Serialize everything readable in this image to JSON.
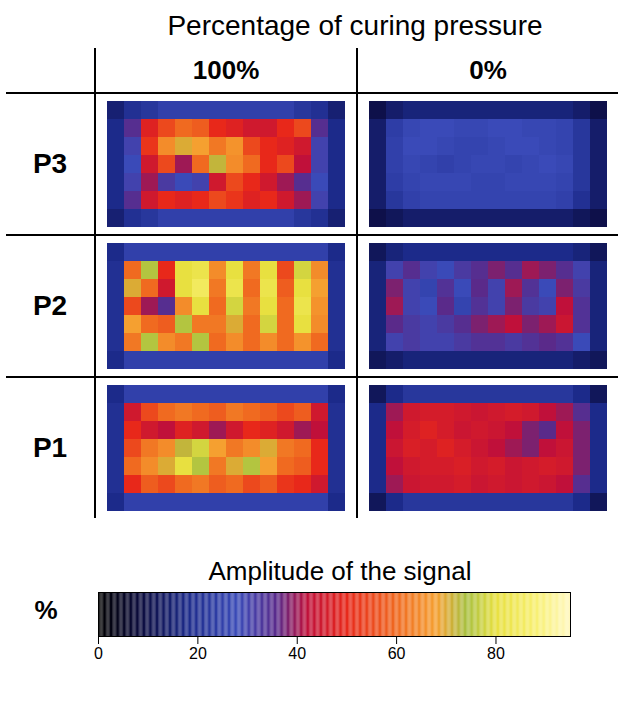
{
  "chart_data": {
    "type": "heatmap",
    "title": "Percentage of curing pressure",
    "columns": [
      "100%",
      "0%"
    ],
    "rows": [
      "P3",
      "P2",
      "P1"
    ],
    "panels": [
      {
        "row": "P3",
        "column": "100%",
        "cells": [
          [
            15,
            20,
            22,
            25,
            25,
            25,
            25,
            25,
            25,
            25,
            25,
            22,
            20,
            15
          ],
          [
            18,
            35,
            48,
            55,
            60,
            58,
            50,
            48,
            45,
            45,
            50,
            55,
            35,
            18
          ],
          [
            18,
            30,
            52,
            65,
            70,
            68,
            62,
            66,
            55,
            50,
            48,
            45,
            30,
            18
          ],
          [
            18,
            28,
            45,
            55,
            40,
            60,
            72,
            65,
            60,
            50,
            55,
            42,
            30,
            18
          ],
          [
            18,
            30,
            40,
            32,
            28,
            30,
            45,
            55,
            50,
            45,
            40,
            35,
            28,
            18
          ],
          [
            18,
            35,
            45,
            50,
            48,
            50,
            55,
            52,
            48,
            50,
            45,
            40,
            30,
            18
          ],
          [
            15,
            20,
            22,
            25,
            25,
            25,
            25,
            25,
            25,
            25,
            25,
            22,
            20,
            15
          ]
        ]
      },
      {
        "row": "P3",
        "column": "0%",
        "cells": [
          [
            10,
            14,
            16,
            16,
            16,
            16,
            16,
            16,
            16,
            16,
            16,
            16,
            14,
            10
          ],
          [
            14,
            24,
            27,
            28,
            28,
            27,
            27,
            28,
            28,
            27,
            27,
            26,
            22,
            14
          ],
          [
            14,
            25,
            28,
            28,
            27,
            26,
            26,
            27,
            28,
            28,
            27,
            26,
            22,
            14
          ],
          [
            14,
            25,
            27,
            26,
            25,
            26,
            27,
            27,
            26,
            27,
            28,
            27,
            22,
            14
          ],
          [
            14,
            24,
            26,
            27,
            27,
            27,
            26,
            26,
            27,
            27,
            27,
            26,
            22,
            14
          ],
          [
            14,
            22,
            25,
            26,
            26,
            26,
            26,
            26,
            26,
            26,
            26,
            25,
            20,
            14
          ],
          [
            10,
            12,
            14,
            14,
            14,
            14,
            14,
            14,
            14,
            14,
            14,
            14,
            12,
            10
          ]
        ]
      },
      {
        "row": "P2",
        "column": "100%",
        "cells": [
          [
            18,
            25,
            25,
            25,
            25,
            25,
            25,
            25,
            25,
            25,
            25,
            25,
            25,
            18
          ],
          [
            20,
            60,
            75,
            50,
            80,
            82,
            65,
            80,
            62,
            80,
            55,
            78,
            65,
            20
          ],
          [
            20,
            70,
            60,
            45,
            80,
            85,
            62,
            82,
            60,
            82,
            58,
            80,
            68,
            20
          ],
          [
            20,
            55,
            40,
            35,
            65,
            80,
            60,
            78,
            62,
            80,
            60,
            82,
            66,
            20
          ],
          [
            20,
            68,
            60,
            58,
            75,
            62,
            62,
            70,
            60,
            78,
            60,
            80,
            65,
            20
          ],
          [
            20,
            62,
            75,
            65,
            62,
            75,
            60,
            65,
            60,
            65,
            60,
            66,
            60,
            20
          ],
          [
            18,
            25,
            25,
            25,
            25,
            25,
            25,
            25,
            25,
            25,
            25,
            25,
            25,
            18
          ]
        ]
      },
      {
        "row": "P2",
        "column": "0%",
        "cells": [
          [
            12,
            16,
            18,
            18,
            18,
            18,
            18,
            18,
            18,
            18,
            18,
            18,
            16,
            12
          ],
          [
            16,
            30,
            35,
            30,
            28,
            32,
            35,
            38,
            35,
            40,
            38,
            35,
            30,
            16
          ],
          [
            16,
            38,
            30,
            26,
            34,
            28,
            36,
            30,
            40,
            34,
            28,
            38,
            32,
            16
          ],
          [
            16,
            40,
            30,
            28,
            36,
            26,
            34,
            30,
            38,
            32,
            30,
            42,
            34,
            16
          ],
          [
            16,
            36,
            32,
            30,
            32,
            35,
            38,
            40,
            42,
            38,
            40,
            44,
            34,
            16
          ],
          [
            16,
            30,
            32,
            30,
            30,
            32,
            34,
            34,
            32,
            34,
            36,
            34,
            28,
            16
          ],
          [
            12,
            14,
            16,
            16,
            16,
            16,
            16,
            16,
            16,
            16,
            16,
            16,
            14,
            12
          ]
        ]
      },
      {
        "row": "P1",
        "column": "100%",
        "cells": [
          [
            18,
            25,
            25,
            25,
            25,
            25,
            25,
            25,
            25,
            25,
            25,
            25,
            25,
            18
          ],
          [
            20,
            45,
            55,
            60,
            62,
            60,
            58,
            62,
            60,
            58,
            55,
            58,
            45,
            20
          ],
          [
            20,
            50,
            45,
            42,
            48,
            45,
            40,
            45,
            50,
            48,
            45,
            40,
            42,
            20
          ],
          [
            20,
            55,
            62,
            65,
            72,
            78,
            68,
            62,
            65,
            70,
            62,
            60,
            50,
            20
          ],
          [
            20,
            60,
            65,
            70,
            80,
            75,
            62,
            70,
            75,
            68,
            60,
            58,
            50,
            20
          ],
          [
            20,
            50,
            58,
            55,
            60,
            62,
            58,
            60,
            55,
            58,
            52,
            50,
            45,
            20
          ],
          [
            18,
            25,
            25,
            25,
            25,
            25,
            25,
            25,
            25,
            25,
            25,
            25,
            25,
            18
          ]
        ]
      },
      {
        "row": "P1",
        "column": "0%",
        "cells": [
          [
            12,
            18,
            22,
            22,
            22,
            22,
            22,
            22,
            22,
            22,
            22,
            22,
            18,
            12
          ],
          [
            18,
            40,
            45,
            46,
            46,
            45,
            44,
            45,
            46,
            45,
            42,
            40,
            35,
            18
          ],
          [
            18,
            42,
            46,
            48,
            46,
            44,
            45,
            44,
            42,
            38,
            36,
            42,
            38,
            18
          ],
          [
            18,
            44,
            47,
            46,
            48,
            46,
            44,
            42,
            40,
            38,
            42,
            44,
            38,
            18
          ],
          [
            18,
            42,
            45,
            46,
            46,
            47,
            45,
            46,
            44,
            45,
            46,
            45,
            38,
            18
          ],
          [
            18,
            40,
            44,
            45,
            45,
            46,
            44,
            45,
            44,
            45,
            44,
            42,
            35,
            18
          ],
          [
            12,
            18,
            22,
            22,
            22,
            22,
            22,
            22,
            22,
            22,
            22,
            22,
            18,
            12
          ]
        ]
      }
    ],
    "colorbar": {
      "title": "Amplitude of the signal",
      "label": "%",
      "range": [
        0,
        95
      ],
      "ticks": [
        0,
        20,
        40,
        60,
        80
      ],
      "stops": [
        0,
        8,
        18,
        28,
        36,
        42,
        50,
        60,
        68,
        74,
        80,
        88,
        95
      ],
      "colors": [
        "#000000",
        "#0a0a3a",
        "#1c2a8a",
        "#3a4ab8",
        "#5a2a8a",
        "#c0103a",
        "#e8281a",
        "#f06a20",
        "#f5a030",
        "#a8c040",
        "#e8e040",
        "#f8f070",
        "#fff8c0"
      ]
    }
  }
}
